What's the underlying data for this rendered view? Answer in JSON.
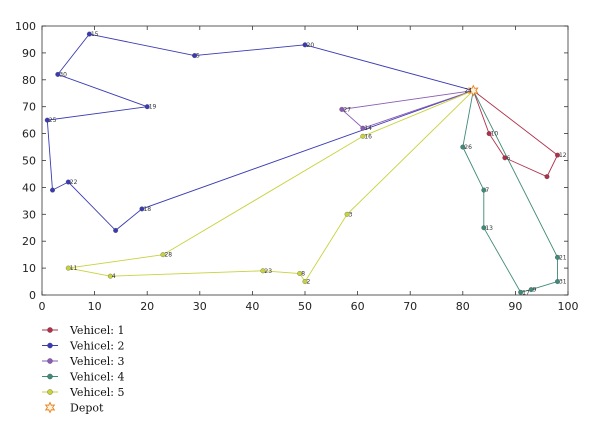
{
  "chart_data": {
    "type": "line",
    "title": "",
    "xlabel": "",
    "ylabel": "",
    "xlim": [
      0,
      100
    ],
    "ylim": [
      0,
      100
    ],
    "xticks": [
      0,
      10,
      20,
      30,
      40,
      50,
      60,
      70,
      80,
      90,
      100
    ],
    "yticks": [
      0,
      10,
      20,
      30,
      40,
      50,
      60,
      70,
      80,
      90,
      100
    ],
    "grid": false,
    "legend_position": "bottom-left",
    "depot": {
      "name": "Depot",
      "label": "24",
      "x": 82,
      "y": 76,
      "color": "#e8821e"
    },
    "series": [
      {
        "name": "Vehicel: 1",
        "color": "#b0304a",
        "points": [
          {
            "x": 82,
            "y": 76,
            "label": ""
          },
          {
            "x": 98,
            "y": 52,
            "label": "12"
          },
          {
            "x": 96,
            "y": 44,
            "label": ""
          },
          {
            "x": 88,
            "y": 51,
            "label": "6"
          },
          {
            "x": 85,
            "y": 60,
            "label": "10"
          },
          {
            "x": 82,
            "y": 76,
            "label": ""
          }
        ]
      },
      {
        "name": "Vehicel: 2",
        "color": "#3a3ab4",
        "points": [
          {
            "x": 82,
            "y": 76,
            "label": ""
          },
          {
            "x": 50,
            "y": 93,
            "label": "20"
          },
          {
            "x": 29,
            "y": 89,
            "label": "5"
          },
          {
            "x": 9,
            "y": 97,
            "label": "15"
          },
          {
            "x": 3,
            "y": 82,
            "label": "30"
          },
          {
            "x": 20,
            "y": 70,
            "label": "19"
          },
          {
            "x": 1,
            "y": 65,
            "label": "25"
          },
          {
            "x": 2,
            "y": 39,
            "label": ""
          },
          {
            "x": 5,
            "y": 42,
            "label": "22"
          },
          {
            "x": 14,
            "y": 24,
            "label": ""
          },
          {
            "x": 19,
            "y": 32,
            "label": "18"
          },
          {
            "x": 82,
            "y": 76,
            "label": ""
          }
        ]
      },
      {
        "name": "Vehicel: 3",
        "color": "#8a5ab4",
        "points": [
          {
            "x": 82,
            "y": 76,
            "label": ""
          },
          {
            "x": 57,
            "y": 69,
            "label": "27"
          },
          {
            "x": 61,
            "y": 62,
            "label": "14"
          },
          {
            "x": 82,
            "y": 76,
            "label": ""
          }
        ]
      },
      {
        "name": "Vehicel: 4",
        "color": "#3f8a78",
        "points": [
          {
            "x": 82,
            "y": 76,
            "label": ""
          },
          {
            "x": 80,
            "y": 55,
            "label": "26"
          },
          {
            "x": 84,
            "y": 39,
            "label": "7"
          },
          {
            "x": 84,
            "y": 25,
            "label": "13"
          },
          {
            "x": 91,
            "y": 1,
            "label": "17"
          },
          {
            "x": 93,
            "y": 2,
            "label": "9"
          },
          {
            "x": 98,
            "y": 5,
            "label": "31"
          },
          {
            "x": 98,
            "y": 14,
            "label": "21"
          },
          {
            "x": 82,
            "y": 76,
            "label": ""
          }
        ]
      },
      {
        "name": "Vehicel: 5",
        "color": "#c8d23c",
        "points": [
          {
            "x": 82,
            "y": 76,
            "label": ""
          },
          {
            "x": 61,
            "y": 59,
            "label": "16"
          },
          {
            "x": 23,
            "y": 15,
            "label": "28"
          },
          {
            "x": 5,
            "y": 10,
            "label": "11"
          },
          {
            "x": 13,
            "y": 7,
            "label": "4"
          },
          {
            "x": 42,
            "y": 9,
            "label": "23"
          },
          {
            "x": 49,
            "y": 8,
            "label": "8"
          },
          {
            "x": 50,
            "y": 5,
            "label": "2"
          },
          {
            "x": 58,
            "y": 30,
            "label": "3"
          },
          {
            "x": 82,
            "y": 76,
            "label": ""
          }
        ]
      }
    ]
  }
}
